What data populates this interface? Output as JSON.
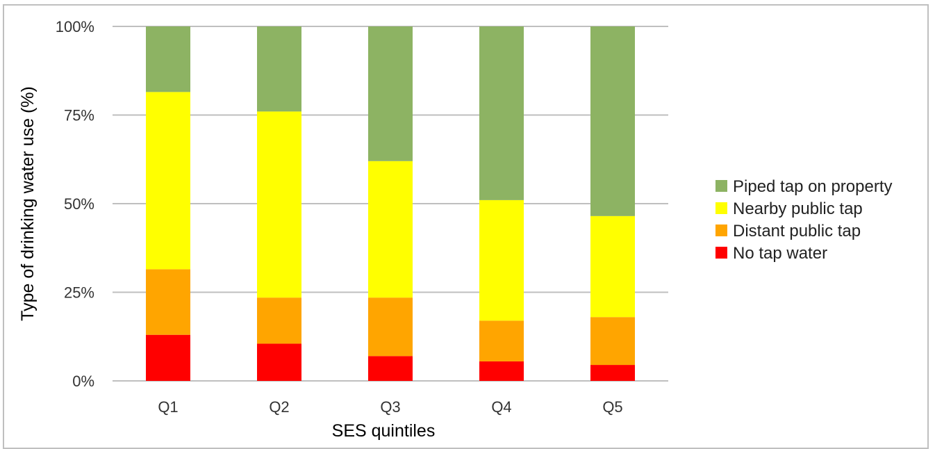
{
  "chart_data": {
    "type": "bar",
    "stacked": true,
    "percent": true,
    "categories": [
      "Q1",
      "Q2",
      "Q3",
      "Q4",
      "Q5"
    ],
    "series": [
      {
        "name": "No tap water",
        "color": "#ff0000",
        "values": [
          13,
          10.5,
          7,
          5.5,
          4.5
        ]
      },
      {
        "name": "Distant public tap",
        "color": "#ffa500",
        "values": [
          18.5,
          13,
          16.5,
          11.5,
          13.5
        ]
      },
      {
        "name": "Nearby public tap",
        "color": "#ffff00",
        "values": [
          50,
          52.5,
          38.5,
          34,
          28.5
        ]
      },
      {
        "name": "Piped tap on property",
        "color": "#8db363",
        "values": [
          18.5,
          24,
          38,
          49,
          53.5
        ]
      }
    ],
    "title": "",
    "xlabel": "SES quintiles",
    "ylabel": "Type of drinking water use (%)",
    "ylim": [
      0,
      100
    ],
    "yticks": [
      0,
      25,
      50,
      75,
      100
    ],
    "ytick_labels": [
      "0%",
      "25%",
      "50%",
      "75%",
      "100%"
    ],
    "grid": true,
    "legend_position": "right",
    "legend_order": [
      "Piped tap on property",
      "Nearby public tap",
      "Distant public tap",
      "No tap water"
    ]
  }
}
